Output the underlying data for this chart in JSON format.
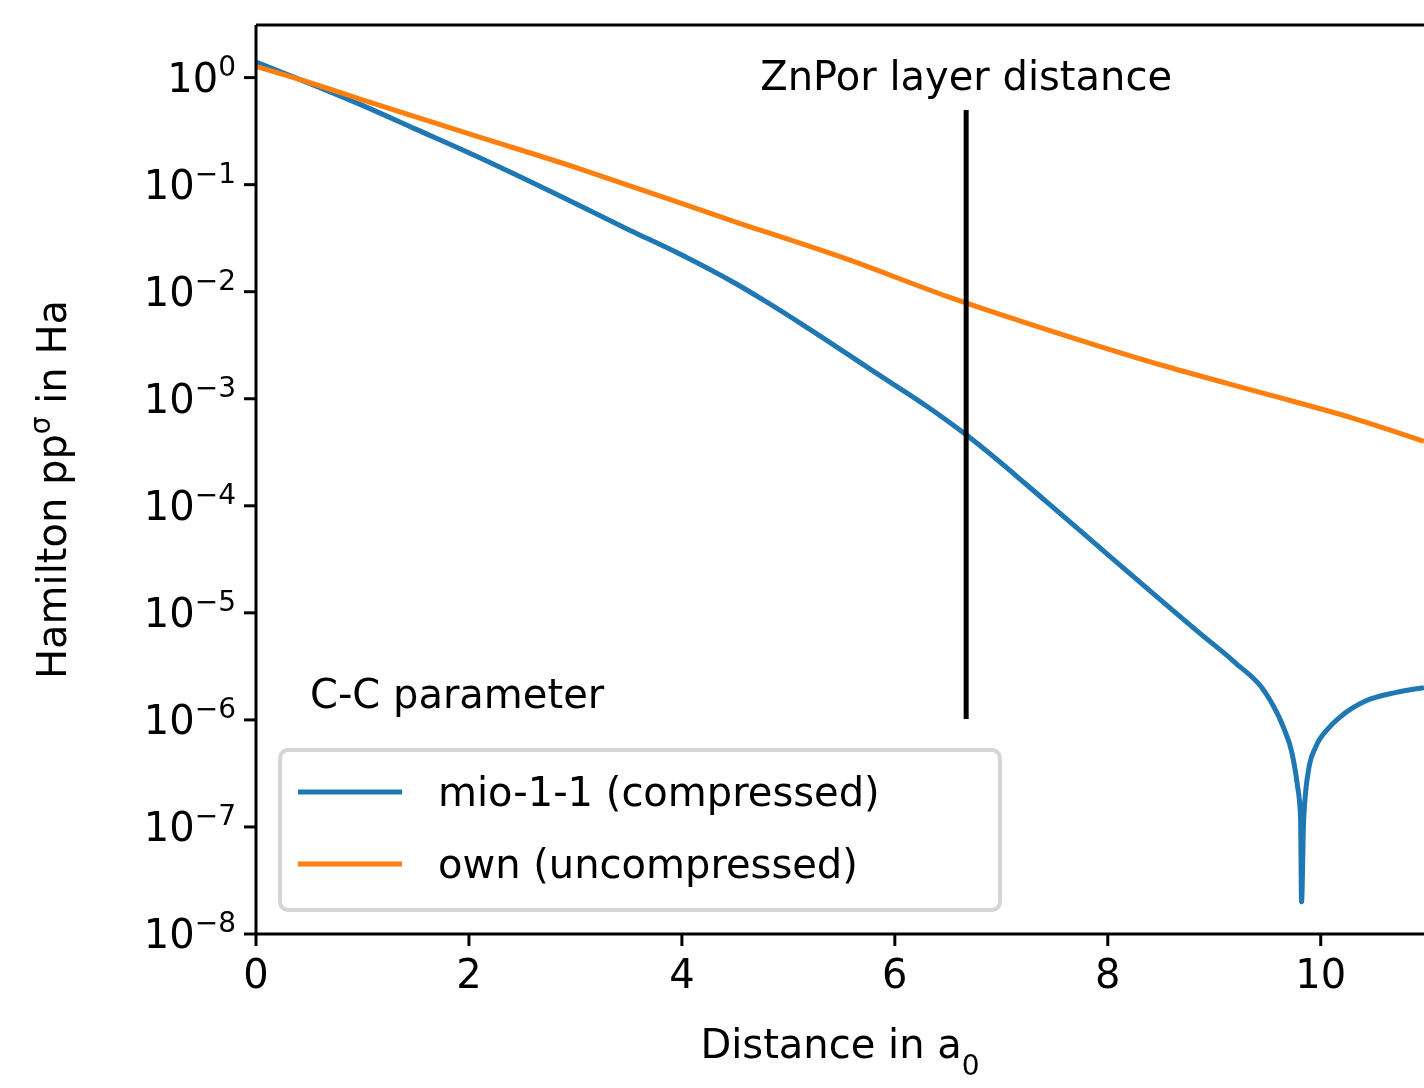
{
  "chart_data": {
    "type": "line",
    "xlabel": "Distance in a$_{0}$",
    "ylabel": "Hamilton pp$^{σ}$ in Ha",
    "legend_title": "C-C parameter",
    "legend": "bottom left",
    "log": "y",
    "grid": false,
    "xlim": [
      0,
      10.97
    ],
    "xticks": [
      0,
      2,
      4,
      6,
      8,
      10
    ],
    "ylim": [
      1e-08,
      3.1
    ],
    "yticks": [
      {
        "value": 1e-08,
        "label": "10$^{−8}$"
      },
      {
        "value": 1e-07,
        "label": "10$^{−7}$"
      },
      {
        "value": 1e-06,
        "label": "10$^{−6}$"
      },
      {
        "value": 1e-05,
        "label": "10$^{−5}$"
      },
      {
        "value": 0.0001,
        "label": "10$^{−4}$"
      },
      {
        "value": 0.001,
        "label": "10$^{−3}$"
      },
      {
        "value": 0.01,
        "label": "10$^{−2}$"
      },
      {
        "value": 0.1,
        "label": "10$^{−1}$"
      },
      {
        "value": 1,
        "label": "10$^{0}$"
      }
    ],
    "ref_lines": [
      {
        "axis": "x",
        "value": 6.67,
        "label": "ZnPor layer distance",
        "color": "#000000"
      }
    ],
    "series": [
      {
        "name": "mio-1-1 (compressed)",
        "color": "#1f77b4",
        "x": [
          0,
          1,
          1.5,
          2.04,
          2.75,
          3.5,
          4,
          4.5,
          5.18,
          5.8,
          6.3,
          6.67,
          7.42,
          8,
          8.86,
          9.2,
          9.48,
          9.65,
          9.73,
          9.78,
          9.81,
          9.82,
          9.84,
          9.89,
          9.95,
          10.08,
          10.2,
          10.42,
          10.7,
          10.97
        ],
        "values": [
          1.4,
          0.55,
          0.33,
          0.19,
          0.088,
          0.038,
          0.022,
          0.012,
          0.0046,
          0.0018,
          0.00085,
          0.00046,
          0.00011,
          3.5e-05,
          6.5e-06,
          3.4e-06,
          1.8e-06,
          8.5e-07,
          4.9e-07,
          2.5e-07,
          1.3e-07,
          2e-08,
          1.2e-07,
          3.6e-07,
          5.5e-07,
          8.5e-07,
          1.1e-06,
          1.5e-06,
          1.8e-06,
          2e-06
        ]
      },
      {
        "name": "own (uncompressed)",
        "color": "#ff7f0e",
        "x": [
          0,
          0.5,
          1,
          1.5,
          2.04,
          3,
          3.72,
          4.5,
          5.5,
          6.51,
          7.5,
          8.55,
          9.5,
          10.3,
          10.97
        ],
        "values": [
          1.27,
          0.9,
          0.62,
          0.43,
          0.29,
          0.145,
          0.083,
          0.045,
          0.021,
          0.0089,
          0.0042,
          0.002,
          0.0011,
          0.00066,
          0.0004
        ]
      }
    ]
  }
}
